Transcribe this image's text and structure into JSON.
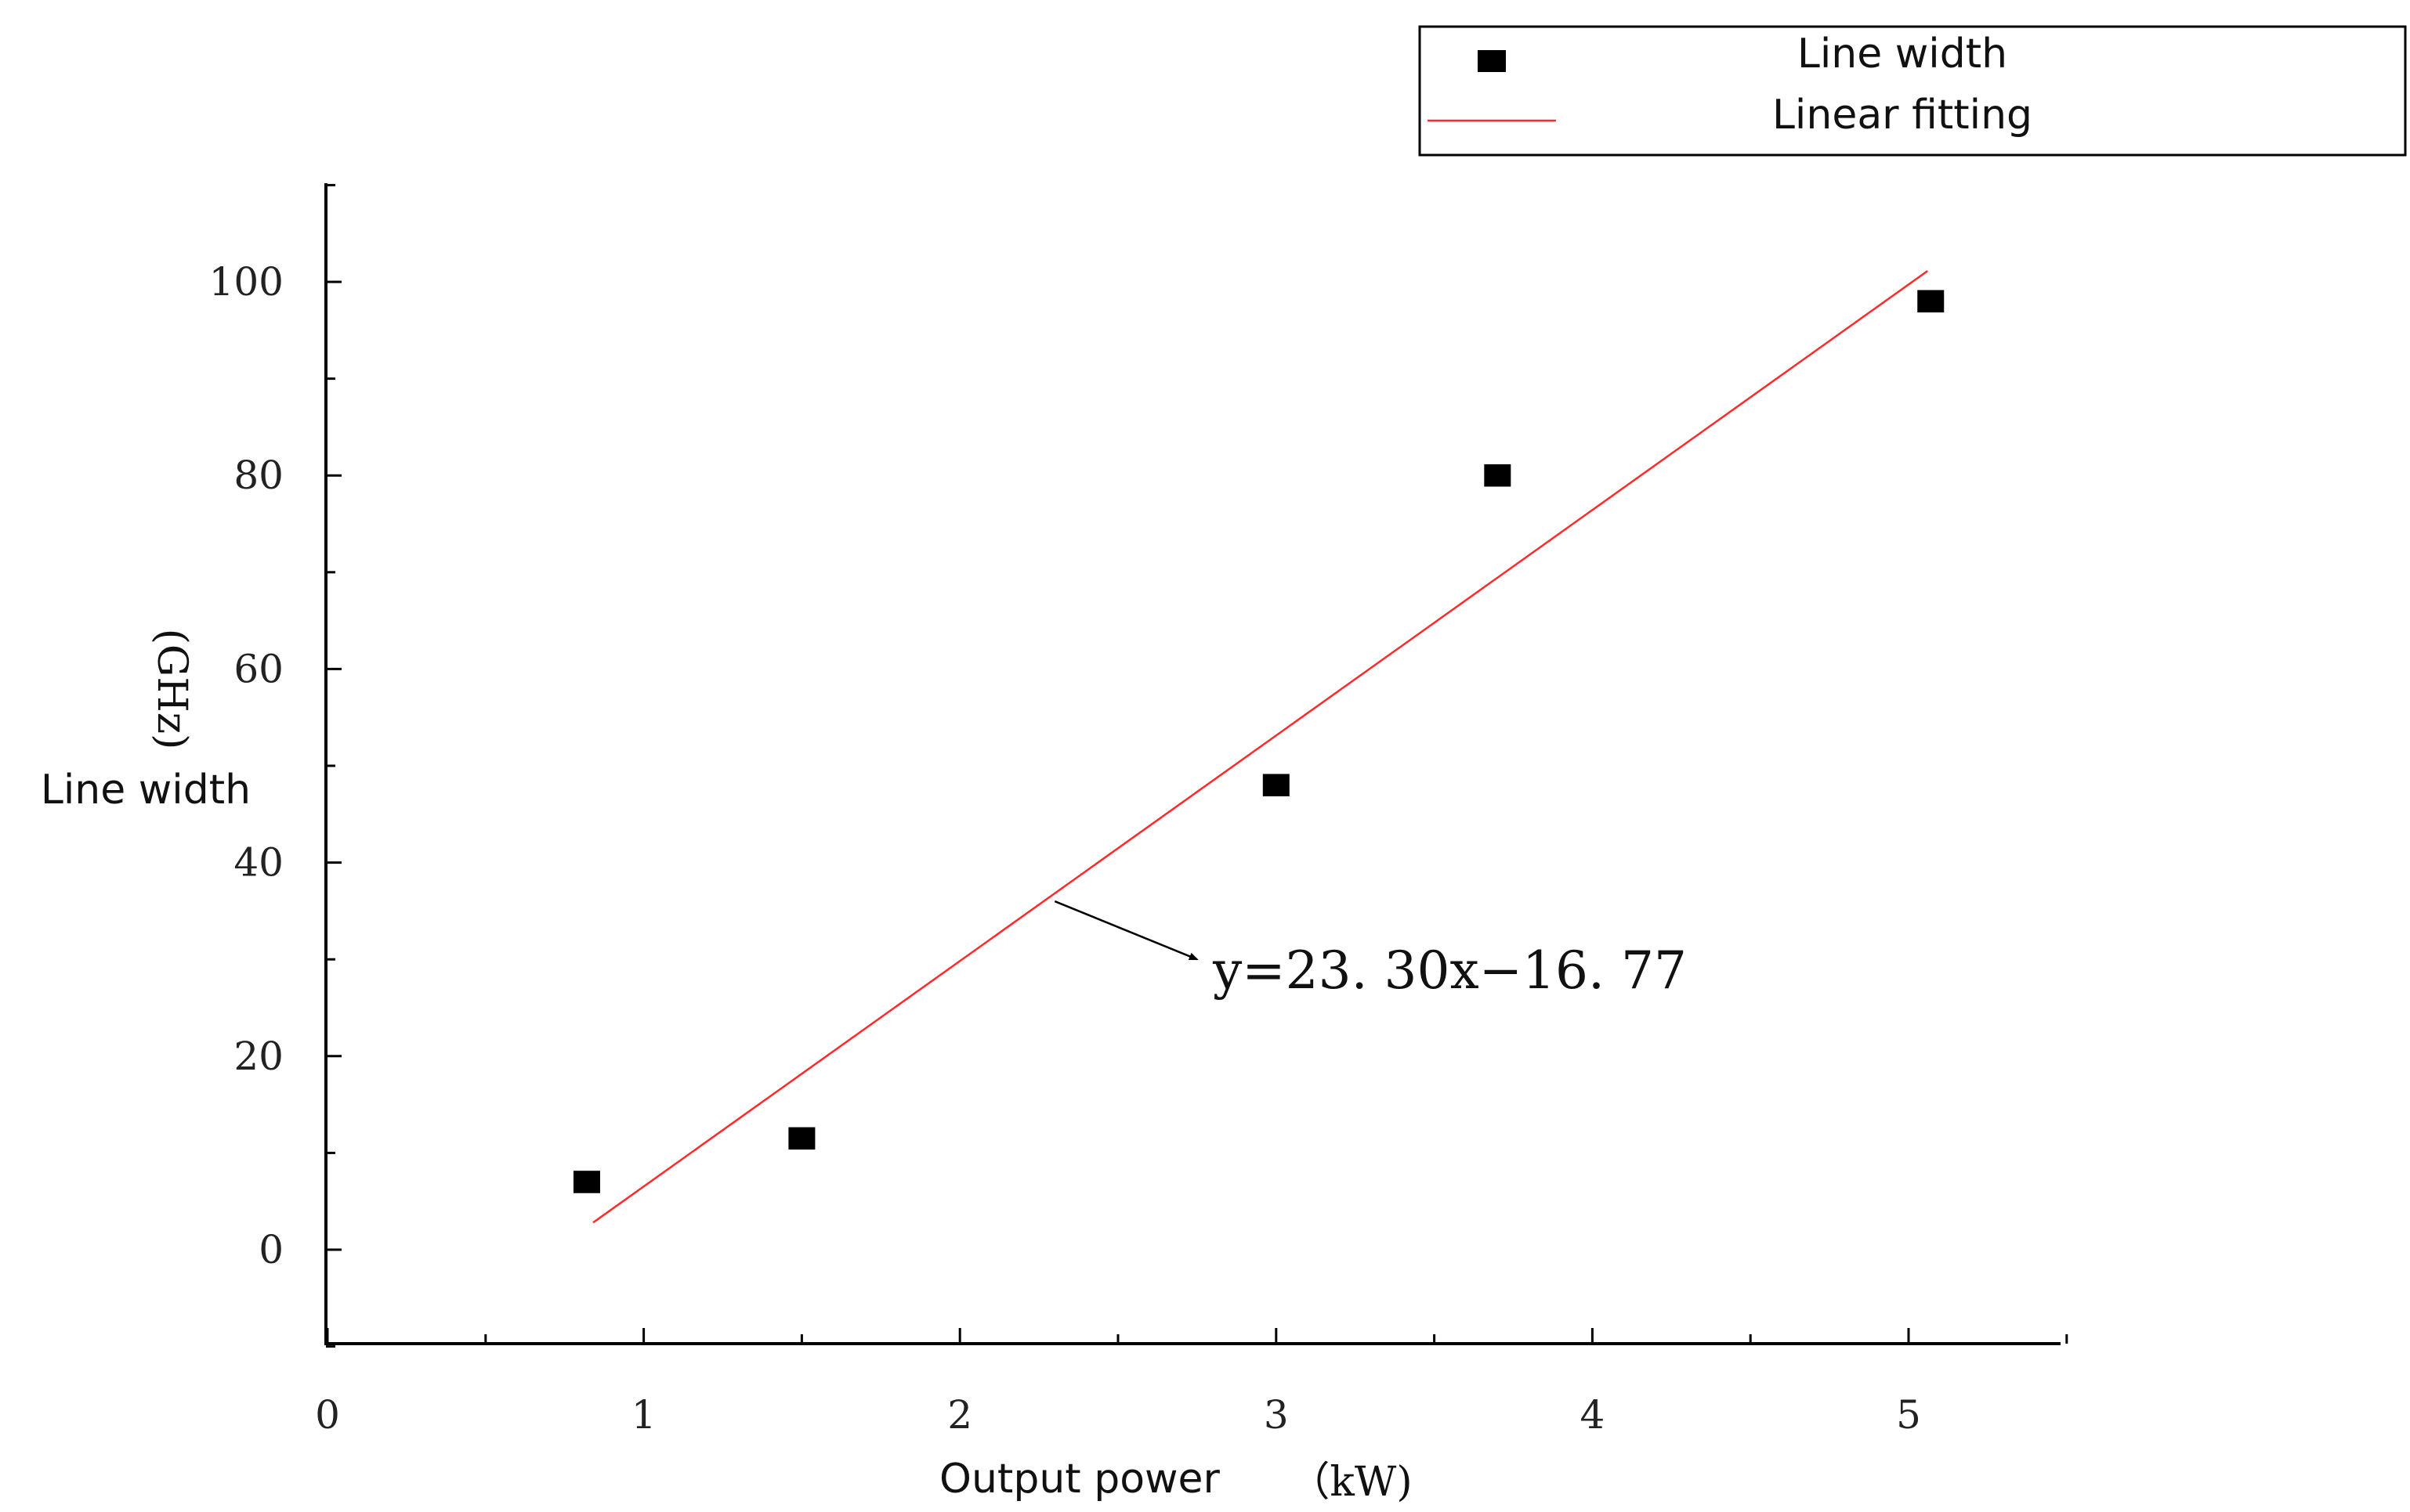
{
  "chart_data": {
    "type": "scatter",
    "xlabel": "Output power",
    "xunit": "（kW)",
    "ylabel": "Line width",
    "yunit": "(GHz)",
    "xlim": [
      0,
      5.5
    ],
    "ylim": [
      -10,
      110
    ],
    "xticks": [
      "0",
      "1",
      "2",
      "3",
      "4",
      "5"
    ],
    "yticks": [
      "0",
      "20",
      "40",
      "60",
      "80",
      "100"
    ],
    "grid": false,
    "legend_position": "top-right",
    "series": [
      {
        "name": "Line width",
        "marker": "square",
        "color": "#000000",
        "points": [
          {
            "x": 0.82,
            "y": 7.0
          },
          {
            "x": 1.5,
            "y": 11.5
          },
          {
            "x": 3.0,
            "y": 48.0
          },
          {
            "x": 3.7,
            "y": 80.0
          },
          {
            "x": 5.07,
            "y": 98.0
          }
        ]
      },
      {
        "name": "Linear fitting",
        "type": "line",
        "color": "#ff2a2a",
        "slope": 23.3,
        "intercept": -16.77,
        "x_range": [
          0.84,
          5.06
        ]
      }
    ],
    "annotation": {
      "text": "y=23. 30x−16. 77",
      "arrow_from_data": [
        2.3,
        36
      ],
      "arrow_to_data": [
        2.75,
        30
      ]
    }
  }
}
